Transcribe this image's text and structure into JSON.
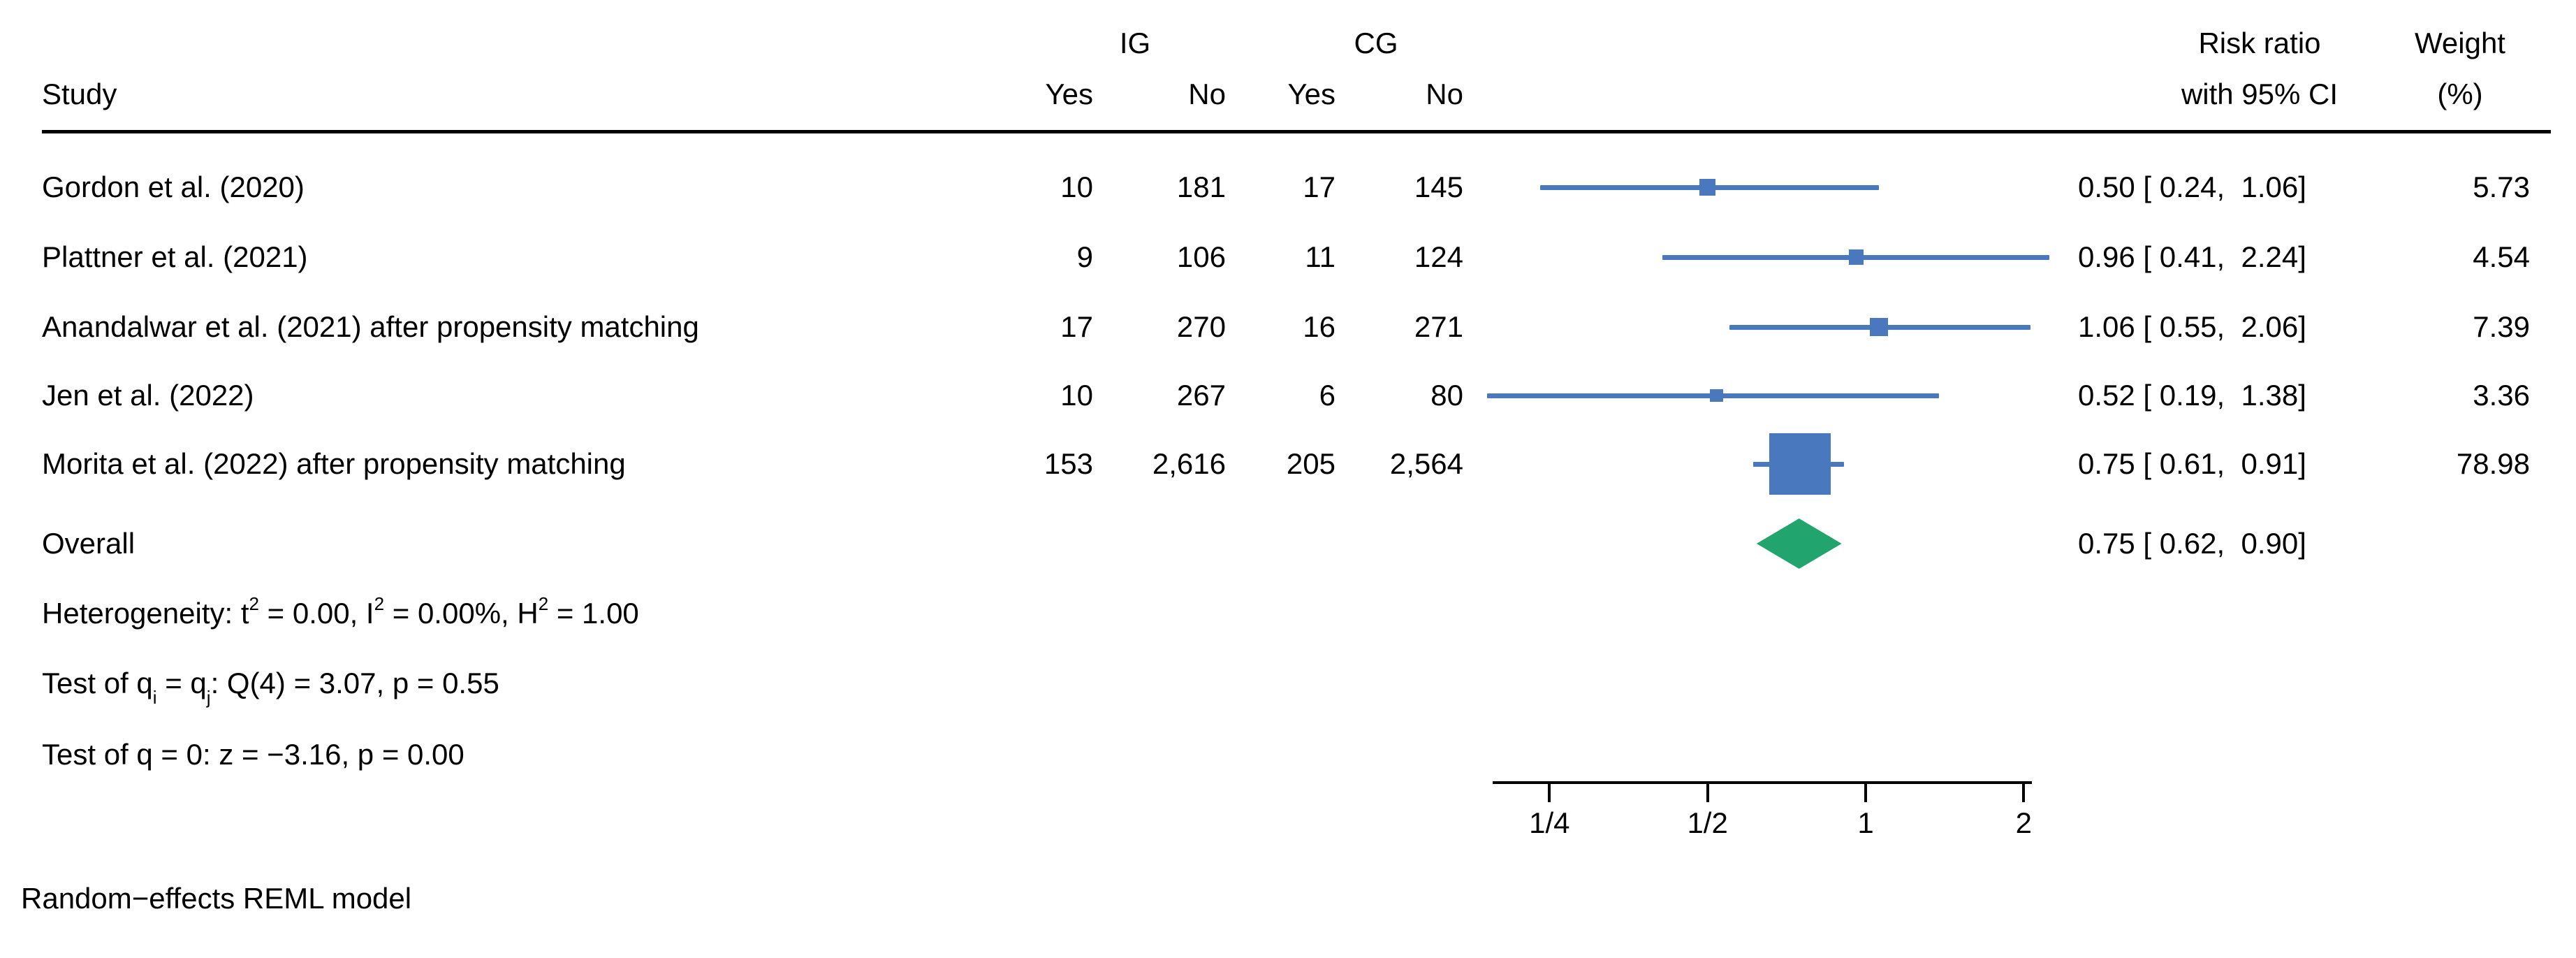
{
  "header": {
    "study": "Study",
    "ig_group": "IG",
    "cg_group": "CG",
    "ig_yes": "Yes",
    "ig_no": "No",
    "cg_yes": "Yes",
    "cg_no": "No",
    "risk_ratio_line1": "Risk ratio",
    "risk_ratio_line2": "with 95% CI",
    "weight_line1": "Weight",
    "weight_line2": "(%)"
  },
  "chart_data": {
    "type": "forest",
    "x_scale": "log2",
    "x_domain": [
      0.185,
      2.35
    ],
    "axis_line_range": [
      0.195,
      2.07
    ],
    "x_ticks": [
      {
        "value": 0.25,
        "label": "1/4"
      },
      {
        "value": 0.5,
        "label": "1/2"
      },
      {
        "value": 1,
        "label": "1"
      },
      {
        "value": 2,
        "label": "2"
      }
    ],
    "colors": {
      "study_marker": "#4a78bf",
      "ci_line": "#4a78bf",
      "overall_diamond": "#21a46d"
    },
    "studies": [
      {
        "name": "Gordon et al. (2020)",
        "ig_yes": "10",
        "ig_no": "181",
        "cg_yes": "17",
        "cg_no": "145",
        "rr": 0.5,
        "ci_low": 0.24,
        "ci_high": 1.06,
        "rr_label": "0.50 [ 0.24,  1.06]",
        "weight": 5.73,
        "weight_label": "5.73"
      },
      {
        "name": "Plattner et al. (2021)",
        "ig_yes": "9",
        "ig_no": "106",
        "cg_yes": "11",
        "cg_no": "124",
        "rr": 0.96,
        "ci_low": 0.41,
        "ci_high": 2.24,
        "rr_label": "0.96 [ 0.41,  2.24]",
        "weight": 4.54,
        "weight_label": "4.54"
      },
      {
        "name": "Anandalwar et al. (2021) after propensity matching",
        "ig_yes": "17",
        "ig_no": "270",
        "cg_yes": "16",
        "cg_no": "271",
        "rr": 1.06,
        "ci_low": 0.55,
        "ci_high": 2.06,
        "rr_label": "1.06 [ 0.55,  2.06]",
        "weight": 7.39,
        "weight_label": "7.39"
      },
      {
        "name": "Jen et al. (2022)",
        "ig_yes": "10",
        "ig_no": "267",
        "cg_yes": "6",
        "cg_no": "80",
        "rr": 0.52,
        "ci_low": 0.19,
        "ci_high": 1.38,
        "rr_label": "0.52 [ 0.19,  1.38]",
        "weight": 3.36,
        "weight_label": "3.36"
      },
      {
        "name": "Morita et al. (2022) after propensity matching",
        "ig_yes": "153",
        "ig_no": "2,616",
        "cg_yes": "205",
        "cg_no": "2,564",
        "rr": 0.75,
        "ci_low": 0.61,
        "ci_high": 0.91,
        "rr_label": "0.75 [ 0.61,  0.91]",
        "weight": 78.98,
        "weight_label": "78.98"
      }
    ],
    "overall": {
      "label": "Overall",
      "rr": 0.75,
      "ci_low": 0.62,
      "ci_high": 0.9,
      "rr_label": "0.75 [ 0.62,  0.90]"
    },
    "notes": [
      {
        "parts": [
          {
            "t": "Heterogeneity: t"
          },
          {
            "sup": "2"
          },
          {
            "t": " = 0.00, I"
          },
          {
            "sup": "2"
          },
          {
            "t": " = 0.00%, H"
          },
          {
            "sup": "2"
          },
          {
            "t": " = 1.00"
          }
        ]
      },
      {
        "parts": [
          {
            "t": "Test of q"
          },
          {
            "sub": "i"
          },
          {
            "t": " = q"
          },
          {
            "sub": "j"
          },
          {
            "t": ": Q(4) = 3.07, p = 0.55"
          }
        ]
      },
      {
        "parts": [
          {
            "t": "Test of q = 0: z = −3.16, p = 0.00"
          }
        ]
      }
    ]
  },
  "footer": {
    "model_note": "Random−effects REML model"
  }
}
